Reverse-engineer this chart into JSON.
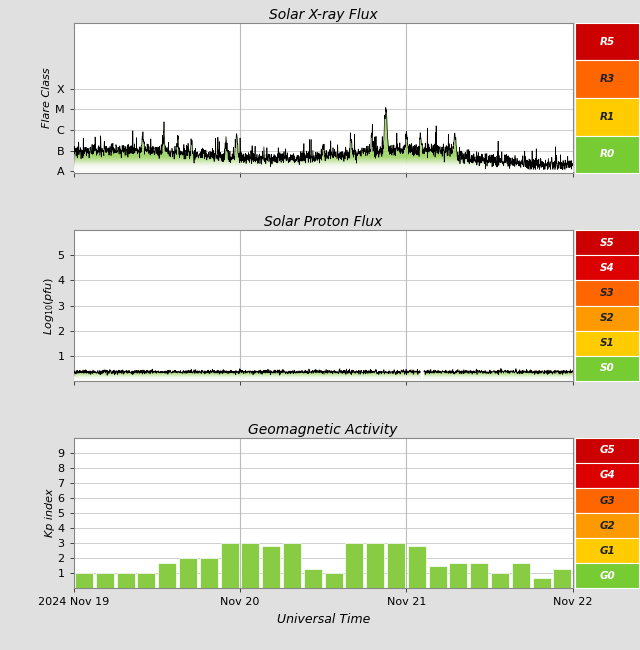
{
  "title1": "Solar X-ray Flux",
  "title2": "Solar Proton Flux",
  "title3": "Geomagnetic Activity",
  "xlabel": "Universal Time",
  "ylabel1": "Flare Class",
  "ylabel2": "Log$_{10}$(pfu)",
  "ylabel3": "Kp index",
  "xticklabels": [
    "2024 Nov 19",
    "Nov 20",
    "Nov 21",
    "Nov 22"
  ],
  "r_labels": [
    "R5",
    "R3",
    "R1",
    "R0"
  ],
  "r_colors": [
    "#cc0000",
    "#ff6600",
    "#ffcc00",
    "#77cc33"
  ],
  "s_labels": [
    "S5",
    "S4",
    "S3",
    "S2",
    "S1",
    "S0"
  ],
  "s_colors": [
    "#cc0000",
    "#dd0000",
    "#ff6600",
    "#ff9900",
    "#ffcc00",
    "#77cc33"
  ],
  "g_labels": [
    "G5",
    "G4",
    "G3",
    "G2",
    "G1",
    "G0"
  ],
  "g_colors": [
    "#cc0000",
    "#dd0000",
    "#ff6600",
    "#ff9900",
    "#ffcc00",
    "#77cc33"
  ],
  "kp_vals": [
    1,
    1,
    1,
    1,
    1.7,
    2,
    2,
    3,
    3,
    2.8,
    3,
    1.3,
    1,
    3,
    3,
    3,
    2.8,
    1.5,
    1.7,
    1.7,
    1,
    1.7,
    0.7,
    1.3
  ],
  "fig_bg": "#e0e0e0"
}
